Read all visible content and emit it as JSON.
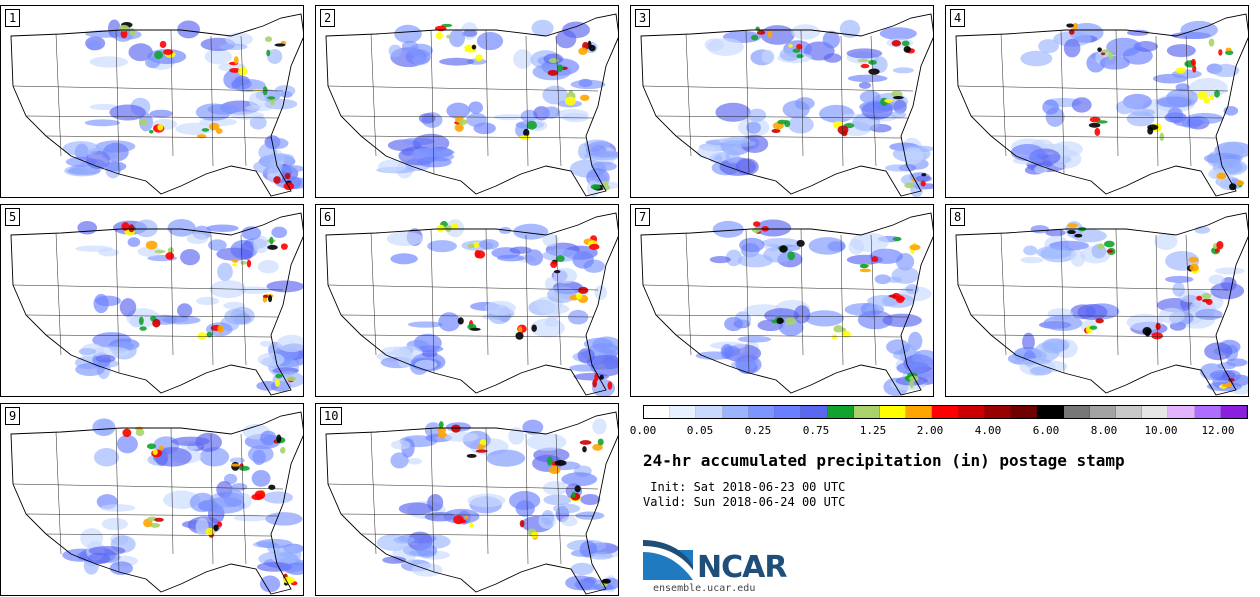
{
  "panels": [
    "1",
    "2",
    "3",
    "4",
    "5",
    "6",
    "7",
    "8",
    "9",
    "10"
  ],
  "colorbar": {
    "colors": [
      "#ffffff",
      "#e6f0ff",
      "#c8d8ff",
      "#9ab4ff",
      "#7d95ff",
      "#6a7fff",
      "#5a65f0",
      "#12a32e",
      "#a9d36a",
      "#ffff00",
      "#ffa500",
      "#ff0000",
      "#cc0000",
      "#990000",
      "#6e0000",
      "#000000",
      "#777777",
      "#a3a3a3",
      "#c8c8c8",
      "#e6e6e6",
      "#e2b3ff",
      "#b06cff",
      "#8a1fe0"
    ],
    "tick_labels": [
      "0.00",
      "0.05",
      "0.25",
      "0.75",
      "1.25",
      "2.00",
      "4.00",
      "6.00",
      "8.00",
      "10.00",
      "12.00"
    ]
  },
  "title": "24-hr accumulated precipitation (in) postage stamp",
  "init": " Init: Sat 2018-06-23 00 UTC",
  "valid": "Valid: Sun 2018-06-24 00 UTC",
  "logo": {
    "name": "NCAR",
    "site": "ensemble.ucar.edu",
    "brand_color": "#1f4e79"
  }
}
